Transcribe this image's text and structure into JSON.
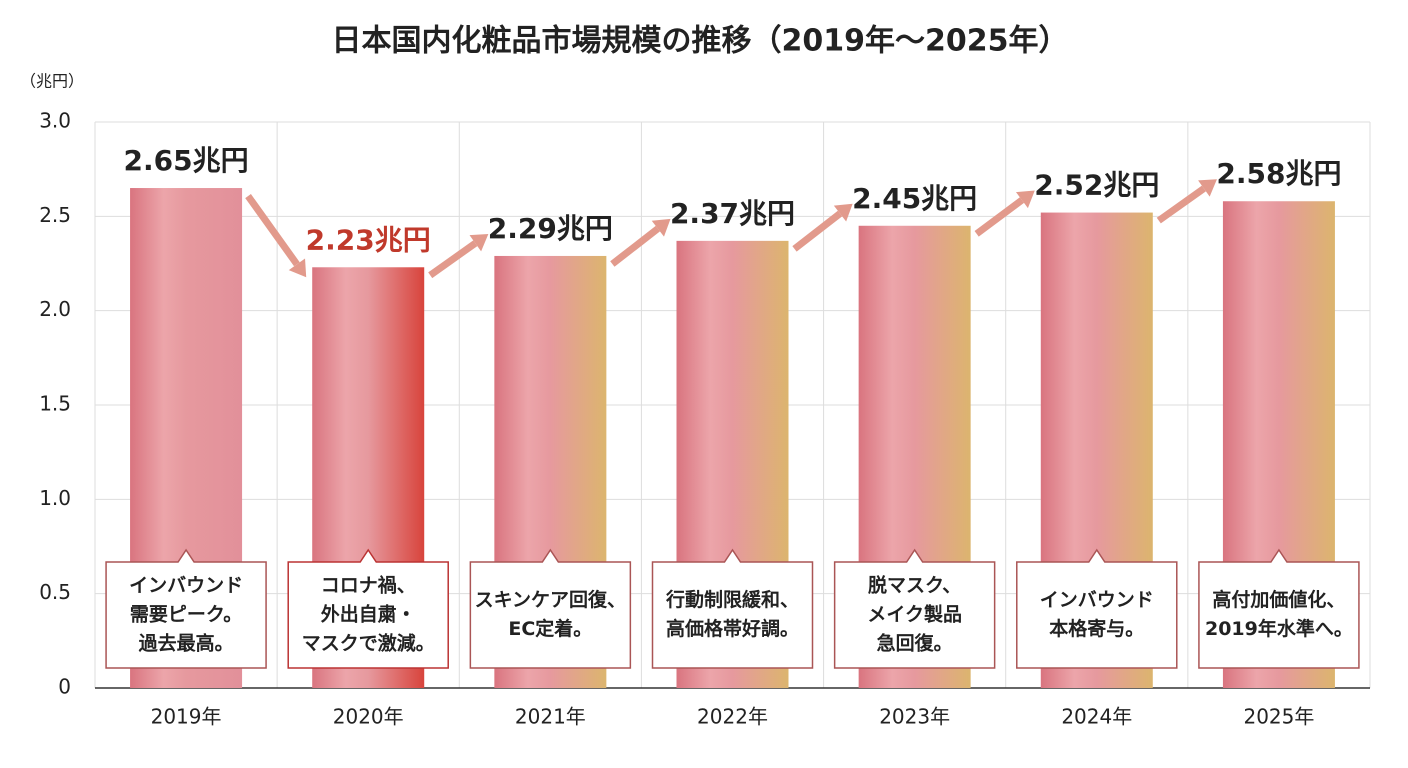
{
  "chart_data": {
    "type": "bar",
    "title": "日本国内化粧品市場規模の推移（2019年〜2025年）",
    "y_label": "（兆円）",
    "categories": [
      "2019年",
      "2020年",
      "2021年",
      "2022年",
      "2023年",
      "2024年",
      "2025年"
    ],
    "values": [
      2.65,
      2.23,
      2.29,
      2.37,
      2.45,
      2.52,
      2.58
    ],
    "value_labels": [
      "2.65兆円",
      "2.23兆円",
      "2.29兆円",
      "2.37兆円",
      "2.45兆円",
      "2.52兆円",
      "2.58兆円"
    ],
    "colors": [
      "#e2909a",
      "#d8443c",
      "#dcb56e",
      "#dcb56e",
      "#dcb56e",
      "#dcb56e",
      "#dcb56e"
    ],
    "annotations": [
      [
        "インバウンド",
        "需要ピーク。",
        "過去最高。"
      ],
      [
        "コロナ禍、",
        "外出自粛・",
        "マスクで激減。"
      ],
      [
        "スキンケア回復、",
        "EC定着。"
      ],
      [
        "行動制限緩和、",
        "高価格帯好調。"
      ],
      [
        "脱マスク、",
        "メイク製品",
        "急回復。"
      ],
      [
        "インバウンド",
        "本格寄与。"
      ],
      [
        "高付加価値化、",
        "2019年水準へ。"
      ]
    ],
    "ylim": [
      0,
      3
    ],
    "yticks": [
      0,
      0.5,
      {
        "value": 1,
        "label": "1.0"
      },
      1.5,
      {
        "value": 2,
        "label": "2.0"
      },
      2.5,
      {
        "value": 3,
        "label": "3.0"
      }
    ],
    "grid": true
  }
}
